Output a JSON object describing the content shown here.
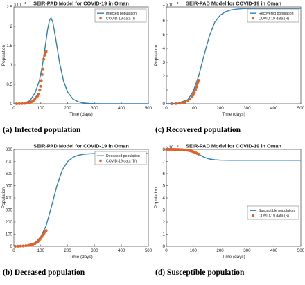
{
  "panels": [
    {
      "caption": "(a) Infected population",
      "chart_data": {
        "type": "line",
        "title": "SEIR-PAD Model for COVID-19 in Oman",
        "xlabel": "Time (days)",
        "ylabel": "Population",
        "xlim": [
          0,
          500
        ],
        "ylim": [
          0,
          2.5
        ],
        "multiplier": "×10",
        "multiplier_exponent": "4",
        "xticks": [
          0,
          100,
          200,
          300,
          400,
          500
        ],
        "yticks": [
          0,
          0.5,
          1,
          1.5,
          2,
          2.5
        ],
        "legend_position": "top-right",
        "series": [
          {
            "name": "Infected population",
            "style": "line",
            "color": "#2e7fb8",
            "x": [
              0,
              20,
              40,
              60,
              80,
              95,
              105,
              115,
              125,
              132,
              138,
              145,
              155,
              170,
              185,
              200,
              220,
              240,
              260,
              280,
              300,
              330,
              360,
              400,
              450,
              500
            ],
            "y": [
              0,
              0.005,
              0.02,
              0.08,
              0.3,
              0.6,
              0.95,
              1.4,
              1.9,
              2.15,
              2.22,
              2.1,
              1.7,
              1.05,
              0.58,
              0.3,
              0.12,
              0.05,
              0.02,
              0.008,
              0.004,
              0.001,
              0,
              0,
              0,
              0
            ]
          },
          {
            "name": "COVID-19 data (I)",
            "style": "scatter",
            "color": "#e0622a",
            "x": [
              10,
              20,
              30,
              40,
              50,
              58,
              65,
              72,
              78,
              84,
              88,
              92,
              96,
              99,
              102,
              105,
              108,
              111,
              114,
              116,
              118,
              120
            ],
            "y": [
              0,
              0.002,
              0.005,
              0.01,
              0.02,
              0.03,
              0.05,
              0.08,
              0.12,
              0.17,
              0.2,
              0.25,
              0.35,
              0.45,
              0.6,
              0.75,
              0.9,
              1.15,
              1.25,
              1.3,
              1.33,
              1.35
            ]
          }
        ]
      }
    },
    {
      "caption": "(c) Recovered population",
      "chart_data": {
        "type": "line",
        "title": "SEIR-PAD Model for COVID-19 in Oman",
        "xlabel": "Time (days)",
        "ylabel": "Population",
        "xlim": [
          0,
          500
        ],
        "ylim": [
          0,
          7
        ],
        "multiplier": "×10",
        "multiplier_exponent": "4",
        "xticks": [
          0,
          100,
          200,
          300,
          400,
          500
        ],
        "yticks": [
          0,
          1,
          2,
          3,
          4,
          5,
          6,
          7
        ],
        "legend_position": "top-right",
        "series": [
          {
            "name": "Recovered population",
            "style": "line",
            "color": "#2e7fb8",
            "x": [
              0,
              40,
              80,
              100,
              120,
              140,
              160,
              180,
              200,
              220,
              240,
              260,
              280,
              300,
              350,
              400,
              450,
              500
            ],
            "y": [
              0,
              0.02,
              0.3,
              0.9,
              2.0,
              3.5,
              4.9,
              5.9,
              6.4,
              6.65,
              6.78,
              6.84,
              6.87,
              6.89,
              6.9,
              6.9,
              6.9,
              6.9
            ]
          },
          {
            "name": "COVID-19 data (R)",
            "style": "scatter",
            "color": "#e0622a",
            "x": [
              20,
              35,
              50,
              60,
              70,
              80,
              88,
              95,
              100,
              104,
              108,
              111,
              114,
              117,
              120
            ],
            "y": [
              0,
              0.01,
              0.03,
              0.06,
              0.12,
              0.22,
              0.35,
              0.5,
              0.65,
              0.8,
              1.0,
              1.2,
              1.4,
              1.55,
              1.7
            ]
          }
        ]
      }
    },
    {
      "caption": "(b) Deceased population",
      "chart_data": {
        "type": "line",
        "title": "SEIR-PAD Model for COVID-19 in Oman",
        "xlabel": "Time (days)",
        "ylabel": "Population",
        "xlim": [
          0,
          500
        ],
        "ylim": [
          0,
          800
        ],
        "xticks": [
          0,
          100,
          200,
          300,
          400,
          500
        ],
        "yticks": [
          0,
          100,
          200,
          300,
          400,
          500,
          600,
          700,
          800
        ],
        "legend_position": "top-right",
        "series": [
          {
            "name": "Deceased population",
            "style": "line",
            "color": "#2e7fb8",
            "x": [
              0,
              40,
              80,
              100,
              120,
              140,
              160,
              180,
              200,
              220,
              240,
              260,
              280,
              300,
              350,
              400,
              450,
              500
            ],
            "y": [
              0,
              3,
              30,
              80,
              170,
              330,
              500,
              630,
              700,
              735,
              752,
              760,
              763,
              765,
              765,
              765,
              765,
              765
            ]
          },
          {
            "name": "COVID-19 data (D)",
            "style": "scatter",
            "color": "#e0622a",
            "x": [
              5,
              15,
              25,
              35,
              45,
              55,
              62,
              70,
              78,
              84,
              90,
              95,
              100,
              104,
              108,
              112,
              116,
              120
            ],
            "y": [
              0,
              1,
              2,
              3,
              5,
              8,
              11,
              16,
              22,
              30,
              40,
              52,
              65,
              80,
              95,
              108,
              120,
              130
            ]
          }
        ]
      }
    },
    {
      "caption": "(d) Susceptible population",
      "chart_data": {
        "type": "line",
        "title": "SEIR-PAD Model for COVID-19 in Oman",
        "xlabel": "Time (days)",
        "ylabel": "Population",
        "xlim": [
          0,
          500
        ],
        "ylim": [
          0,
          8
        ],
        "multiplier": "×10",
        "multiplier_exponent": "5",
        "xticks": [
          0,
          100,
          200,
          300,
          400,
          500
        ],
        "yticks": [
          0,
          1,
          2,
          3,
          4,
          5,
          6,
          7,
          8
        ],
        "legend_position": "center-right",
        "series": [
          {
            "name": "Susceptible population",
            "style": "line",
            "color": "#2e7fb8",
            "x": [
              0,
              40,
              80,
              100,
              120,
              140,
              160,
              180,
              200,
              240,
              300,
              400,
              500
            ],
            "y": [
              8.0,
              7.99,
              7.95,
              7.85,
              7.6,
              7.35,
              7.2,
              7.14,
              7.11,
              7.1,
              7.1,
              7.1,
              7.1
            ]
          },
          {
            "name": "COVID-19 data (S)",
            "style": "scatter",
            "color": "#e0622a",
            "x": [
              0,
              5,
              10,
              15,
              20,
              25,
              30,
              35,
              40,
              45,
              50,
              55,
              60,
              65,
              70,
              75,
              80,
              85,
              90,
              95,
              100,
              105,
              110,
              115,
              120
            ],
            "y": [
              8.0,
              8.0,
              8.0,
              8.0,
              8.0,
              8.0,
              7.99,
              7.99,
              7.99,
              7.99,
              7.98,
              7.98,
              7.97,
              7.96,
              7.95,
              7.94,
              7.92,
              7.9,
              7.87,
              7.84,
              7.8,
              7.76,
              7.71,
              7.66,
              7.6
            ]
          }
        ]
      }
    }
  ]
}
